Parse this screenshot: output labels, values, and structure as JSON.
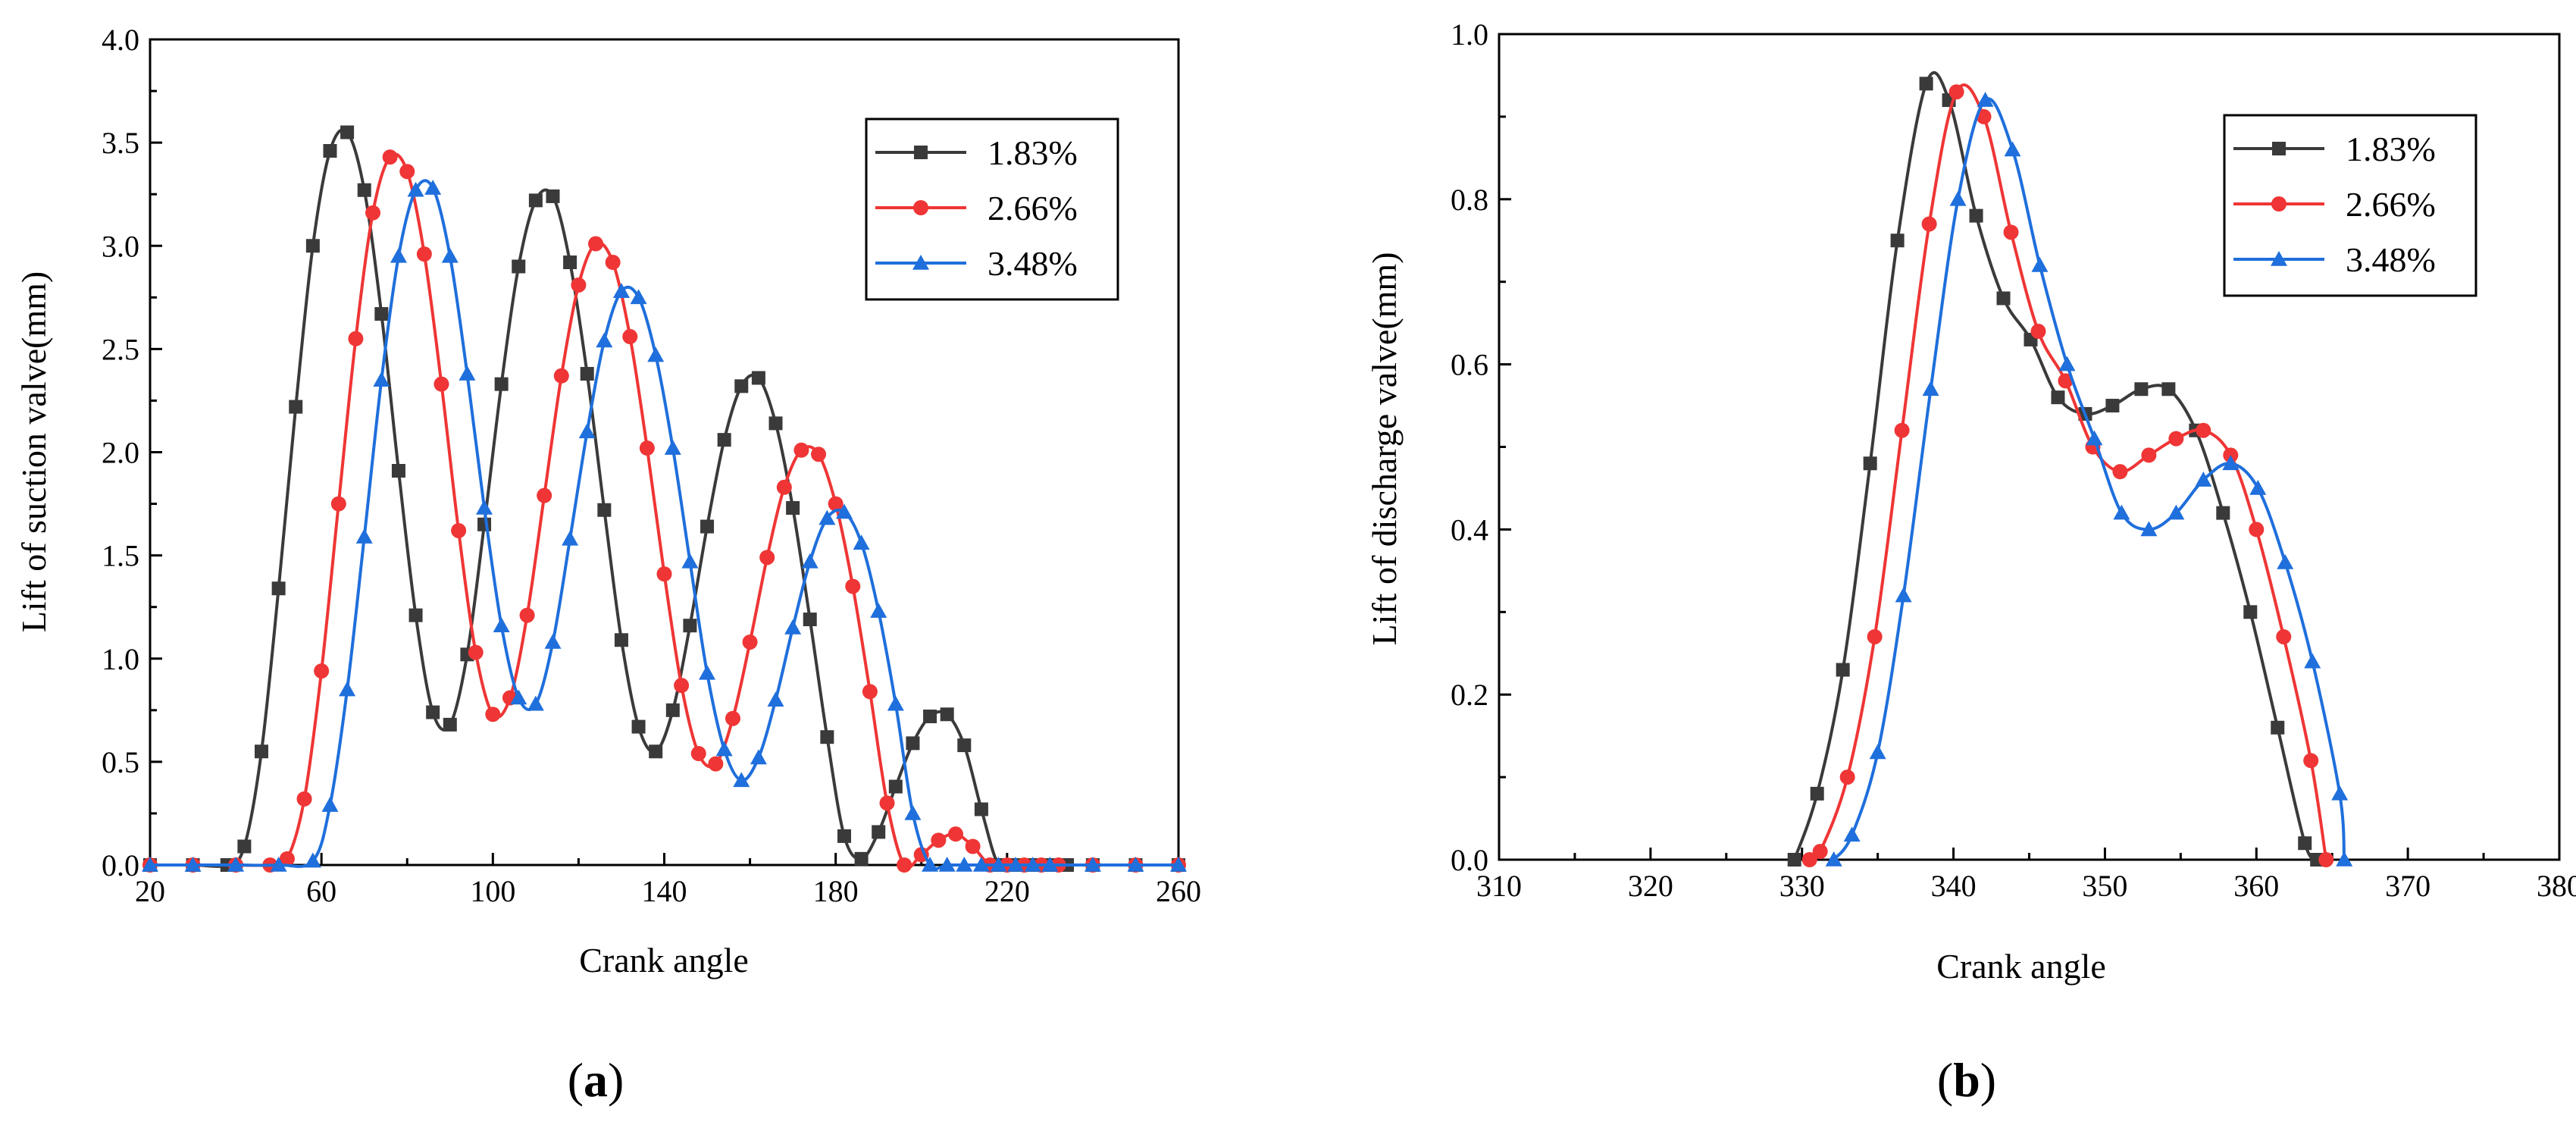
{
  "colors": {
    "s183": "#3a3a3a",
    "s266": "#ef3535",
    "s348": "#1f6fdc"
  },
  "chart_data": [
    {
      "type": "line",
      "panel_label_prefix": "(",
      "panel_label": "a",
      "panel_label_suffix": ")",
      "xlabel": "Crank angle",
      "ylabel": "Lift of suction valve(mm)",
      "xlim": [
        20,
        260
      ],
      "ylim": [
        0.0,
        4.0
      ],
      "xticks": [
        "20",
        "60",
        "100",
        "140",
        "180",
        "220",
        "260"
      ],
      "yticks": [
        "0.0",
        "0.5",
        "1.0",
        "1.5",
        "2.0",
        "2.5",
        "3.0",
        "3.5",
        "4.0"
      ],
      "legend": {
        "position": "top-right",
        "entries": [
          "1.83%",
          "2.66%",
          "3.48%"
        ]
      },
      "series": [
        {
          "name": "1.83%",
          "marker": "square",
          "x": [
            20,
            30,
            38,
            42,
            46,
            50,
            54,
            58,
            62,
            66,
            70,
            74,
            78,
            82,
            86,
            90,
            94,
            98,
            102,
            106,
            110,
            114,
            118,
            122,
            126,
            130,
            134,
            138,
            142,
            146,
            150,
            154,
            158,
            162,
            166,
            170,
            174,
            178,
            182,
            186,
            190,
            194,
            198,
            202,
            206,
            210,
            214,
            218,
            222,
            226,
            230,
            234,
            240,
            250,
            260
          ],
          "y": [
            0,
            0,
            0,
            0.09,
            0.55,
            1.34,
            2.22,
            3.0,
            3.46,
            3.55,
            3.27,
            2.67,
            1.91,
            1.21,
            0.74,
            0.68,
            1.02,
            1.65,
            2.33,
            2.9,
            3.22,
            3.24,
            2.92,
            2.38,
            1.72,
            1.09,
            0.67,
            0.55,
            0.75,
            1.16,
            1.64,
            2.06,
            2.32,
            2.36,
            2.14,
            1.73,
            1.19,
            0.62,
            0.14,
            0.03,
            0.16,
            0.38,
            0.59,
            0.72,
            0.73,
            0.58,
            0.27,
            0.0,
            0,
            0,
            0,
            0,
            0,
            0,
            0
          ]
        },
        {
          "name": "2.66%",
          "marker": "circle",
          "x": [
            20,
            30,
            40,
            48,
            52,
            56,
            60,
            64,
            68,
            72,
            76,
            80,
            84,
            88,
            92,
            96,
            100,
            104,
            108,
            112,
            116,
            120,
            124,
            128,
            132,
            136,
            140,
            144,
            148,
            152,
            156,
            160,
            164,
            168,
            172,
            176,
            180,
            184,
            188,
            192,
            196,
            200,
            204,
            208,
            212,
            216,
            220,
            224,
            228,
            232,
            240,
            250,
            260
          ],
          "y": [
            0,
            0,
            0,
            0.0,
            0.03,
            0.32,
            0.94,
            1.75,
            2.55,
            3.16,
            3.43,
            3.36,
            2.96,
            2.33,
            1.62,
            1.03,
            0.73,
            0.81,
            1.21,
            1.79,
            2.37,
            2.81,
            3.01,
            2.92,
            2.56,
            2.02,
            1.41,
            0.87,
            0.54,
            0.49,
            0.71,
            1.08,
            1.49,
            1.83,
            2.01,
            1.99,
            1.75,
            1.35,
            0.84,
            0.3,
            0.0,
            0.05,
            0.12,
            0.15,
            0.09,
            0.0,
            0,
            0,
            0,
            0,
            0,
            0,
            0
          ]
        },
        {
          "name": "3.48%",
          "marker": "triangle",
          "x": [
            20,
            30,
            40,
            50,
            58,
            62,
            66,
            70,
            74,
            78,
            82,
            86,
            90,
            94,
            98,
            102,
            106,
            110,
            114,
            118,
            122,
            126,
            130,
            134,
            138,
            142,
            146,
            150,
            154,
            158,
            162,
            166,
            170,
            174,
            178,
            182,
            186,
            190,
            194,
            198,
            202,
            206,
            210,
            214,
            218,
            222,
            226,
            230,
            240,
            250,
            260
          ],
          "y": [
            0,
            0,
            0,
            0,
            0.02,
            0.29,
            0.85,
            1.59,
            2.35,
            2.95,
            3.27,
            3.28,
            2.95,
            2.38,
            1.73,
            1.16,
            0.81,
            0.78,
            1.08,
            1.58,
            2.1,
            2.54,
            2.78,
            2.75,
            2.47,
            2.02,
            1.47,
            0.93,
            0.56,
            0.41,
            0.52,
            0.8,
            1.15,
            1.47,
            1.68,
            1.71,
            1.56,
            1.23,
            0.78,
            0.25,
            0.0,
            0.0,
            0,
            0,
            0,
            0,
            0,
            0,
            0,
            0,
            0
          ]
        }
      ]
    },
    {
      "type": "line",
      "panel_label_prefix": "(",
      "panel_label": "b",
      "panel_label_suffix": ")",
      "xlabel": "Crank angle",
      "ylabel": "Lift of discharge valve(mm)",
      "xlim": [
        310,
        380
      ],
      "ylim": [
        0.0,
        1.0
      ],
      "xticks": [
        "310",
        "320",
        "330",
        "340",
        "350",
        "360",
        "370",
        "380"
      ],
      "yticks": [
        "0.0",
        "0.2",
        "0.4",
        "0.6",
        "0.8",
        "1.0"
      ],
      "legend": {
        "position": "top-right",
        "entries": [
          "1.83%",
          "2.66%",
          "3.48%"
        ]
      },
      "series": [
        {
          "name": "1.83%",
          "marker": "square",
          "x": [
            329.5,
            331,
            332.7,
            334.5,
            336.3,
            338.2,
            339.7,
            341.5,
            343.3,
            345.1,
            346.9,
            348.7,
            350.5,
            352.4,
            354.2,
            356,
            357.8,
            359.6,
            361.4,
            363.2,
            364
          ],
          "y": [
            0.0,
            0.08,
            0.23,
            0.48,
            0.75,
            0.94,
            0.92,
            0.78,
            0.68,
            0.63,
            0.56,
            0.54,
            0.55,
            0.57,
            0.57,
            0.52,
            0.42,
            0.3,
            0.16,
            0.02,
            0.0
          ]
        },
        {
          "name": "2.66%",
          "marker": "circle",
          "x": [
            330.5,
            331.2,
            333,
            334.8,
            336.6,
            338.4,
            340.2,
            342,
            343.8,
            345.6,
            347.4,
            349.2,
            351,
            352.9,
            354.7,
            356.5,
            358.3,
            360,
            361.8,
            363.6,
            364.6
          ],
          "y": [
            0.0,
            0.01,
            0.1,
            0.27,
            0.52,
            0.77,
            0.93,
            0.9,
            0.76,
            0.64,
            0.58,
            0.5,
            0.47,
            0.49,
            0.51,
            0.52,
            0.49,
            0.4,
            0.27,
            0.12,
            0.0
          ]
        },
        {
          "name": "3.48%",
          "marker": "triangle",
          "x": [
            332.1,
            333.3,
            335,
            336.7,
            338.5,
            340.3,
            342.1,
            343.9,
            345.7,
            347.5,
            349.3,
            351.1,
            352.9,
            354.7,
            356.5,
            358.3,
            360.1,
            361.9,
            363.7,
            365.5,
            365.8
          ],
          "y": [
            0.0,
            0.03,
            0.13,
            0.32,
            0.57,
            0.8,
            0.92,
            0.86,
            0.72,
            0.6,
            0.51,
            0.42,
            0.4,
            0.42,
            0.46,
            0.48,
            0.45,
            0.36,
            0.24,
            0.08,
            0.0
          ]
        }
      ]
    }
  ]
}
